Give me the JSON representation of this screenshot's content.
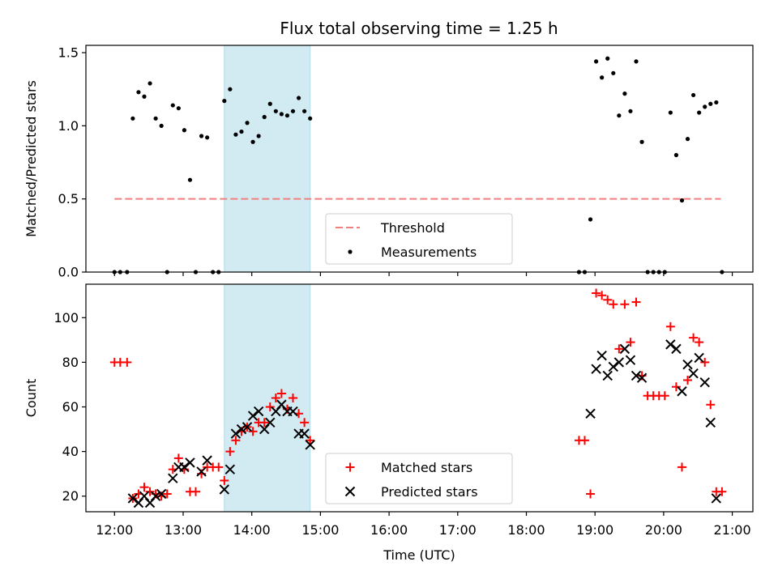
{
  "figure": {
    "title": "Flux total observing time = 1.25 h"
  },
  "chart_data": [
    {
      "type": "scatter",
      "panel": "top",
      "title": "Flux total observing time = 1.25 h",
      "xlabel": "",
      "ylabel": "Matched/Predicted stars",
      "xlim": [
        "11:35",
        "21:18"
      ],
      "ylim": [
        0,
        1.55
      ],
      "yticks": [
        0.0,
        0.5,
        1.0,
        1.5
      ],
      "ytick_labels": [
        "0.0",
        "0.5",
        "1.0",
        "1.5"
      ],
      "xticks": [
        "12:00",
        "13:00",
        "14:00",
        "15:00",
        "16:00",
        "17:00",
        "18:00",
        "19:00",
        "20:00",
        "21:00"
      ],
      "highlight_span": {
        "start": "13:36",
        "end": "14:51",
        "color": "#add8e6"
      },
      "threshold": {
        "name": "Threshold",
        "value": 0.5,
        "start": "12:00",
        "end": "20:50",
        "color": "#f08080",
        "style": "dashed"
      },
      "legend": {
        "placement": "lower-center",
        "entries": [
          "Threshold",
          "Measurements"
        ]
      },
      "series": [
        {
          "name": "Measurements",
          "marker": "dot",
          "color": "#000000",
          "points": [
            [
              "12:00",
              0.0
            ],
            [
              "12:05",
              0.0
            ],
            [
              "12:11",
              0.0
            ],
            [
              "12:16",
              1.05
            ],
            [
              "12:21",
              1.23
            ],
            [
              "12:26",
              1.2
            ],
            [
              "12:31",
              1.29
            ],
            [
              "12:36",
              1.05
            ],
            [
              "12:41",
              1.0
            ],
            [
              "12:46",
              0.0
            ],
            [
              "12:51",
              1.14
            ],
            [
              "12:56",
              1.12
            ],
            [
              "13:01",
              0.97
            ],
            [
              "13:06",
              0.63
            ],
            [
              "13:11",
              0.0
            ],
            [
              "13:16",
              0.93
            ],
            [
              "13:21",
              0.92
            ],
            [
              "13:26",
              0.0
            ],
            [
              "13:31",
              0.0
            ],
            [
              "13:36",
              1.17
            ],
            [
              "13:41",
              1.25
            ],
            [
              "13:46",
              0.94
            ],
            [
              "13:51",
              0.96
            ],
            [
              "13:56",
              1.02
            ],
            [
              "14:01",
              0.89
            ],
            [
              "14:06",
              0.93
            ],
            [
              "14:11",
              1.06
            ],
            [
              "14:16",
              1.15
            ],
            [
              "14:21",
              1.1
            ],
            [
              "14:26",
              1.08
            ],
            [
              "14:31",
              1.07
            ],
            [
              "14:36",
              1.1
            ],
            [
              "14:41",
              1.19
            ],
            [
              "14:46",
              1.1
            ],
            [
              "14:51",
              1.05
            ],
            [
              "18:46",
              0.0
            ],
            [
              "18:51",
              0.0
            ],
            [
              "18:56",
              0.36
            ],
            [
              "19:01",
              1.44
            ],
            [
              "19:06",
              1.33
            ],
            [
              "19:11",
              1.46
            ],
            [
              "19:16",
              1.36
            ],
            [
              "19:21",
              1.07
            ],
            [
              "19:26",
              1.22
            ],
            [
              "19:31",
              1.1
            ],
            [
              "19:36",
              1.44
            ],
            [
              "19:41",
              0.89
            ],
            [
              "19:46",
              0.0
            ],
            [
              "19:51",
              0.0
            ],
            [
              "19:56",
              0.0
            ],
            [
              "20:01",
              0.0
            ],
            [
              "20:06",
              1.09
            ],
            [
              "20:11",
              0.8
            ],
            [
              "20:16",
              0.49
            ],
            [
              "20:21",
              0.91
            ],
            [
              "20:26",
              1.21
            ],
            [
              "20:31",
              1.09
            ],
            [
              "20:36",
              1.13
            ],
            [
              "20:41",
              1.15
            ],
            [
              "20:46",
              1.16
            ],
            [
              "20:51",
              0.0
            ]
          ]
        }
      ]
    },
    {
      "type": "scatter",
      "panel": "bottom",
      "title": "",
      "xlabel": "Time (UTC)",
      "ylabel": "Count",
      "xlim": [
        "11:35",
        "21:18"
      ],
      "ylim": [
        13,
        115
      ],
      "yticks": [
        20,
        40,
        60,
        80,
        100
      ],
      "xticks": [
        "12:00",
        "13:00",
        "14:00",
        "15:00",
        "16:00",
        "17:00",
        "18:00",
        "19:00",
        "20:00",
        "21:00"
      ],
      "highlight_span": {
        "start": "13:36",
        "end": "14:51",
        "color": "#add8e6"
      },
      "legend": {
        "placement": "lower-center",
        "entries": [
          "Matched stars",
          "Predicted stars"
        ]
      },
      "series": [
        {
          "name": "Matched stars",
          "marker": "plus",
          "color": "#ff0000",
          "points": [
            [
              "12:00",
              80
            ],
            [
              "12:05",
              80
            ],
            [
              "12:11",
              80
            ],
            [
              "12:16",
              19
            ],
            [
              "12:21",
              21
            ],
            [
              "12:26",
              24
            ],
            [
              "12:31",
              22
            ],
            [
              "12:36",
              21
            ],
            [
              "12:41",
              20
            ],
            [
              "12:46",
              21
            ],
            [
              "12:51",
              32
            ],
            [
              "12:56",
              37
            ],
            [
              "13:01",
              32
            ],
            [
              "13:06",
              22
            ],
            [
              "13:11",
              22
            ],
            [
              "13:16",
              30
            ],
            [
              "13:21",
              33
            ],
            [
              "13:26",
              33
            ],
            [
              "13:31",
              33
            ],
            [
              "13:36",
              27
            ],
            [
              "13:41",
              40
            ],
            [
              "13:46",
              45
            ],
            [
              "13:51",
              49
            ],
            [
              "13:56",
              51
            ],
            [
              "14:01",
              49
            ],
            [
              "14:06",
              53
            ],
            [
              "14:11",
              53
            ],
            [
              "14:16",
              60
            ],
            [
              "14:21",
              64
            ],
            [
              "14:26",
              66
            ],
            [
              "14:31",
              59
            ],
            [
              "14:36",
              64
            ],
            [
              "14:41",
              57
            ],
            [
              "14:46",
              53
            ],
            [
              "14:51",
              45
            ],
            [
              "18:46",
              45
            ],
            [
              "18:51",
              45
            ],
            [
              "18:56",
              21
            ],
            [
              "19:01",
              111
            ],
            [
              "19:06",
              110
            ],
            [
              "19:11",
              108
            ],
            [
              "19:16",
              106
            ],
            [
              "19:21",
              86
            ],
            [
              "19:26",
              106
            ],
            [
              "19:31",
              89
            ],
            [
              "19:36",
              107
            ],
            [
              "19:41",
              74
            ],
            [
              "19:46",
              65
            ],
            [
              "19:51",
              65
            ],
            [
              "19:56",
              65
            ],
            [
              "20:01",
              65
            ],
            [
              "20:06",
              96
            ],
            [
              "20:11",
              69
            ],
            [
              "20:16",
              33
            ],
            [
              "20:21",
              72
            ],
            [
              "20:26",
              91
            ],
            [
              "20:31",
              89
            ],
            [
              "20:36",
              80
            ],
            [
              "20:41",
              61
            ],
            [
              "20:46",
              22
            ],
            [
              "20:51",
              22
            ]
          ]
        },
        {
          "name": "Predicted stars",
          "marker": "x",
          "color": "#000000",
          "points": [
            [
              "12:16",
              19
            ],
            [
              "12:21",
              17
            ],
            [
              "12:26",
              20
            ],
            [
              "12:31",
              17
            ],
            [
              "12:36",
              20
            ],
            [
              "12:41",
              21
            ],
            [
              "12:51",
              28
            ],
            [
              "12:56",
              33
            ],
            [
              "13:01",
              33
            ],
            [
              "13:06",
              35
            ],
            [
              "13:16",
              31
            ],
            [
              "13:21",
              36
            ],
            [
              "13:36",
              23
            ],
            [
              "13:41",
              32
            ],
            [
              "13:46",
              48
            ],
            [
              "13:51",
              50
            ],
            [
              "13:56",
              51
            ],
            [
              "14:01",
              56
            ],
            [
              "14:06",
              58
            ],
            [
              "14:11",
              50
            ],
            [
              "14:16",
              53
            ],
            [
              "14:21",
              58
            ],
            [
              "14:26",
              61
            ],
            [
              "14:31",
              58
            ],
            [
              "14:36",
              58
            ],
            [
              "14:41",
              48
            ],
            [
              "14:46",
              48
            ],
            [
              "14:51",
              43
            ],
            [
              "18:56",
              57
            ],
            [
              "19:01",
              77
            ],
            [
              "19:06",
              83
            ],
            [
              "19:11",
              74
            ],
            [
              "19:16",
              78
            ],
            [
              "19:21",
              80
            ],
            [
              "19:26",
              86
            ],
            [
              "19:31",
              81
            ],
            [
              "19:36",
              74
            ],
            [
              "19:41",
              73
            ],
            [
              "20:06",
              88
            ],
            [
              "20:11",
              86
            ],
            [
              "20:16",
              67
            ],
            [
              "20:21",
              79
            ],
            [
              "20:26",
              75
            ],
            [
              "20:31",
              82
            ],
            [
              "20:36",
              71
            ],
            [
              "20:41",
              53
            ],
            [
              "20:46",
              19
            ]
          ]
        }
      ]
    }
  ]
}
